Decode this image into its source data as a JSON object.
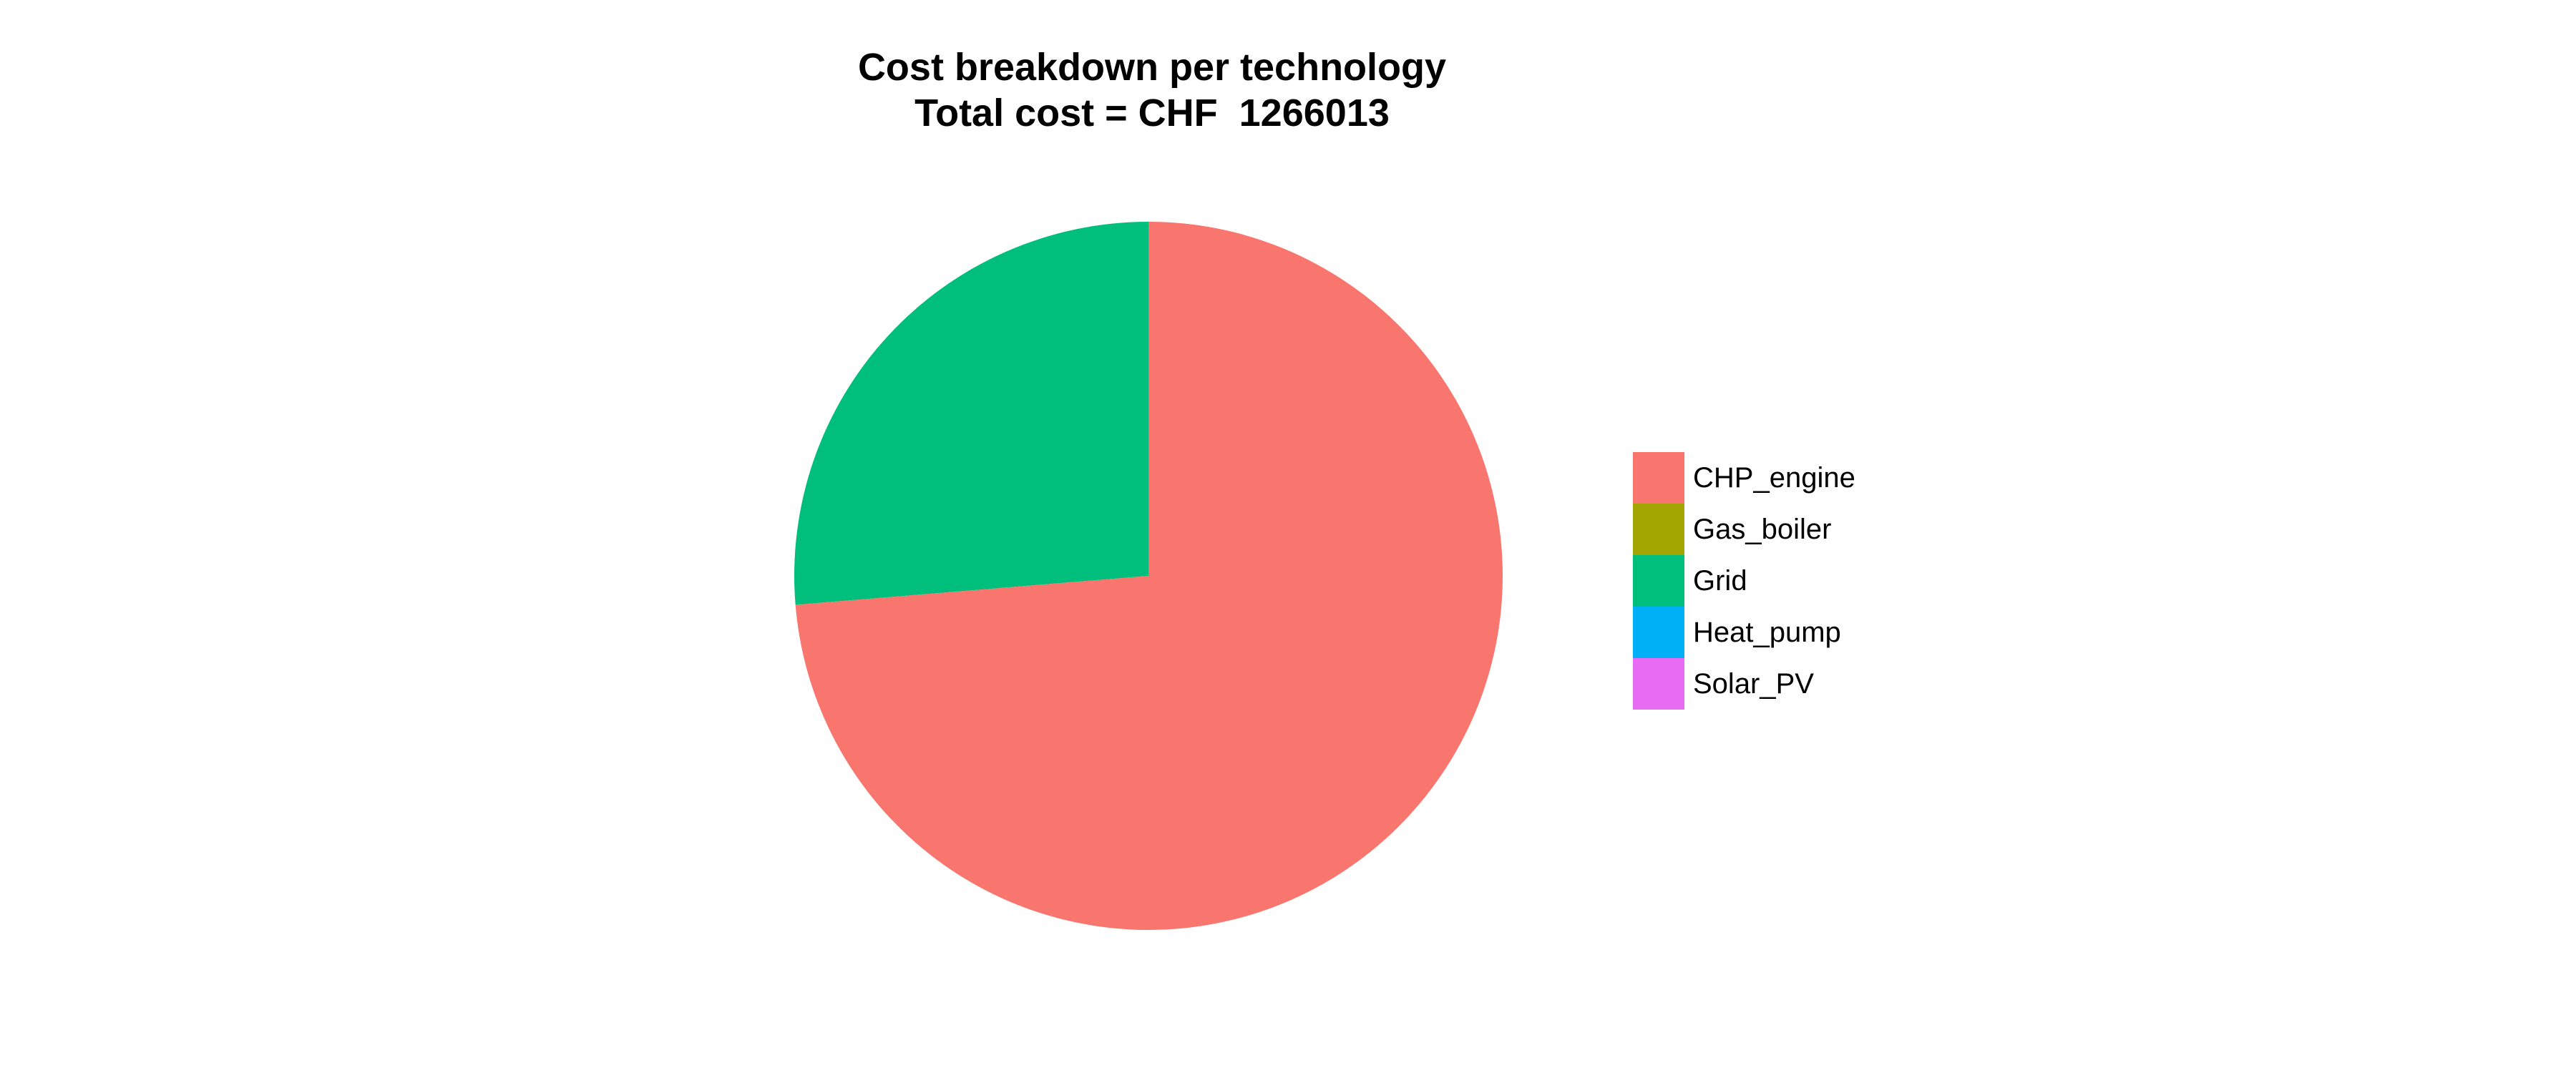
{
  "chart_data": {
    "type": "pie",
    "title": "Cost breakdown per technology",
    "subtitle": "Total cost = CHF  1266013",
    "start_angle_deg": 0,
    "direction": "clockwise",
    "legend_position": "right",
    "slices": [
      {
        "label": "CHP_engine",
        "value": 0.737,
        "color": "#F8766D"
      },
      {
        "label": "Gas_boiler",
        "value": 0.0,
        "color": "#A3A500"
      },
      {
        "label": "Grid",
        "value": 0.263,
        "color": "#00BF7D"
      },
      {
        "label": "Heat_pump",
        "value": 0.0,
        "color": "#00B0F6"
      },
      {
        "label": "Solar_PV",
        "value": 0.0,
        "color": "#E76BF3"
      }
    ]
  }
}
